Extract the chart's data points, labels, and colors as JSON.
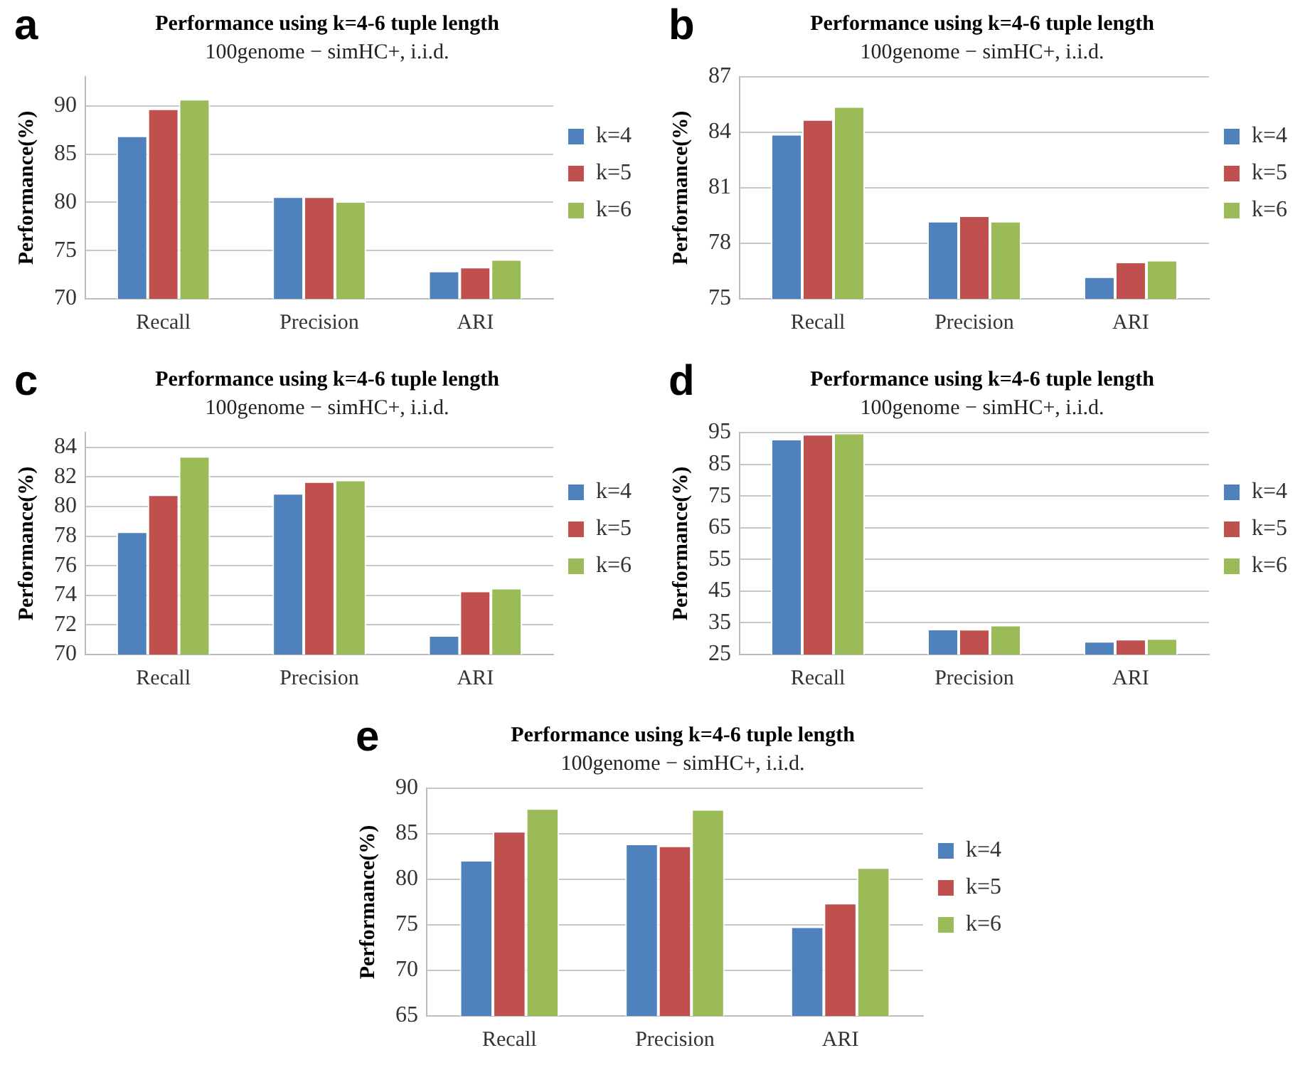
{
  "chart_data": [
    {
      "type": "bar",
      "title": "Performance using k=4-6 tuple length",
      "subtitle": "100genome − simHC+, i.i.d.",
      "ylabel": "Performance(%)",
      "annotations": [
        "a"
      ],
      "categories": [
        "Recall",
        "Precision",
        "ARI"
      ],
      "ylim": [
        70,
        93
      ],
      "yticks": [
        70,
        75,
        80,
        85,
        90
      ],
      "grid": "y",
      "legend": "right",
      "series": [
        {
          "name": "k=4",
          "color": "#4f81bd",
          "values": [
            86.9,
            80.6,
            72.9
          ]
        },
        {
          "name": "k=5",
          "color": "#c0504d",
          "values": [
            89.7,
            80.6,
            73.3
          ]
        },
        {
          "name": "k=6",
          "color": "#9bbb59",
          "values": [
            90.7,
            80.1,
            74.1
          ]
        }
      ]
    },
    {
      "type": "bar",
      "title": "Performance using k=4-6 tuple length",
      "subtitle": "100genome − simHC+, i.i.d.",
      "ylabel": "Performance(%)",
      "annotations": [
        "b"
      ],
      "categories": [
        "Recall",
        "Precision",
        "ARI"
      ],
      "ylim": [
        75,
        87
      ],
      "yticks": [
        75,
        78,
        81,
        84,
        87
      ],
      "grid": "y",
      "legend": "right",
      "series": [
        {
          "name": "k=4",
          "color": "#4f81bd",
          "values": [
            83.9,
            79.2,
            76.2
          ]
        },
        {
          "name": "k=5",
          "color": "#c0504d",
          "values": [
            84.7,
            79.5,
            77.0
          ]
        },
        {
          "name": "k=6",
          "color": "#9bbb59",
          "values": [
            85.4,
            79.2,
            77.1
          ]
        }
      ]
    },
    {
      "type": "bar",
      "title": "Performance using k=4-6 tuple length",
      "subtitle": "100genome − simHC+, i.i.d.",
      "ylabel": "Performance(%)",
      "annotations": [
        "c"
      ],
      "categories": [
        "Recall",
        "Precision",
        "ARI"
      ],
      "ylim": [
        70,
        85
      ],
      "yticks": [
        70,
        72,
        74,
        76,
        78,
        80,
        82,
        84
      ],
      "grid": "y",
      "legend": "right",
      "series": [
        {
          "name": "k=4",
          "color": "#4f81bd",
          "values": [
            78.3,
            80.9,
            71.3
          ]
        },
        {
          "name": "k=5",
          "color": "#c0504d",
          "values": [
            80.8,
            81.7,
            74.3
          ]
        },
        {
          "name": "k=6",
          "color": "#9bbb59",
          "values": [
            83.4,
            81.8,
            74.5
          ]
        }
      ]
    },
    {
      "type": "bar",
      "title": "Performance using k=4-6 tuple length",
      "subtitle": "100genome − simHC+, i.i.d.",
      "ylabel": "Performance(%)",
      "annotations": [
        "d"
      ],
      "categories": [
        "Recall",
        "Precision",
        "ARI"
      ],
      "ylim": [
        25,
        95
      ],
      "yticks": [
        25,
        35,
        45,
        55,
        65,
        75,
        85,
        95
      ],
      "grid": "y",
      "legend": "right",
      "series": [
        {
          "name": "k=4",
          "color": "#4f81bd",
          "values": [
            93,
            33.1,
            29.2
          ]
        },
        {
          "name": "k=5",
          "color": "#c0504d",
          "values": [
            94.5,
            33,
            29.9
          ]
        },
        {
          "name": "k=6",
          "color": "#9bbb59",
          "values": [
            94.9,
            34.3,
            30.1
          ]
        }
      ]
    },
    {
      "type": "bar",
      "title": "Performance using k=4-6 tuple length",
      "subtitle": "100genome − simHC+, i.i.d.",
      "ylabel": "Performance(%)",
      "annotations": [
        "e"
      ],
      "categories": [
        "Recall",
        "Precision",
        "ARI"
      ],
      "ylim": [
        65,
        90
      ],
      "yticks": [
        65,
        70,
        75,
        80,
        85,
        90
      ],
      "grid": "y",
      "legend": "right",
      "series": [
        {
          "name": "k=4",
          "color": "#4f81bd",
          "values": [
            82.1,
            83.9,
            74.8
          ]
        },
        {
          "name": "k=5",
          "color": "#c0504d",
          "values": [
            85.3,
            83.7,
            77.4
          ]
        },
        {
          "name": "k=6",
          "color": "#9bbb59",
          "values": [
            87.8,
            87.7,
            81.3
          ]
        }
      ]
    }
  ]
}
